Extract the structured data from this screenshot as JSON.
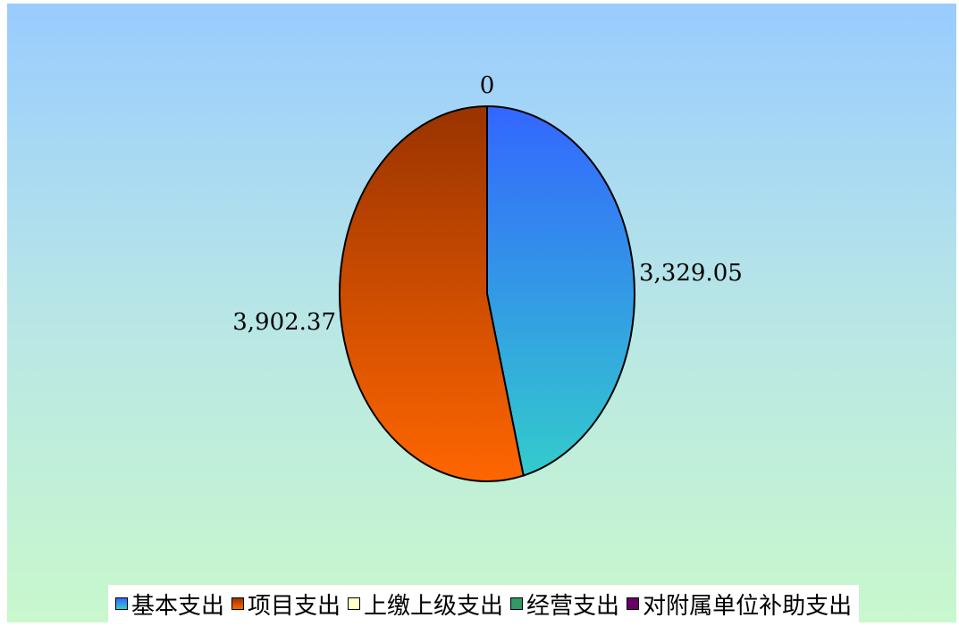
{
  "chart_data": {
    "type": "pie",
    "title": "",
    "slices": [
      {
        "name": "基本支出",
        "value": 3329.05,
        "label": "3,329.05",
        "color_top": "#3366ff",
        "color_bottom": "#33cccc"
      },
      {
        "name": "项目支出",
        "value": 3902.37,
        "label": "3,902.37",
        "color_top": "#993300",
        "color_bottom": "#ff6600"
      },
      {
        "name": "上缴上级支出",
        "value": 0,
        "label": "0",
        "color_top": "#ffffcc",
        "color_bottom": "#ffffcc"
      },
      {
        "name": "经营支出",
        "value": 0,
        "label": "",
        "color_top": "#339966",
        "color_bottom": "#339966"
      },
      {
        "name": "对附属单位补助支出",
        "value": 0,
        "label": "",
        "color_top": "#660066",
        "color_bottom": "#660066"
      }
    ],
    "legend_position": "bottom"
  }
}
